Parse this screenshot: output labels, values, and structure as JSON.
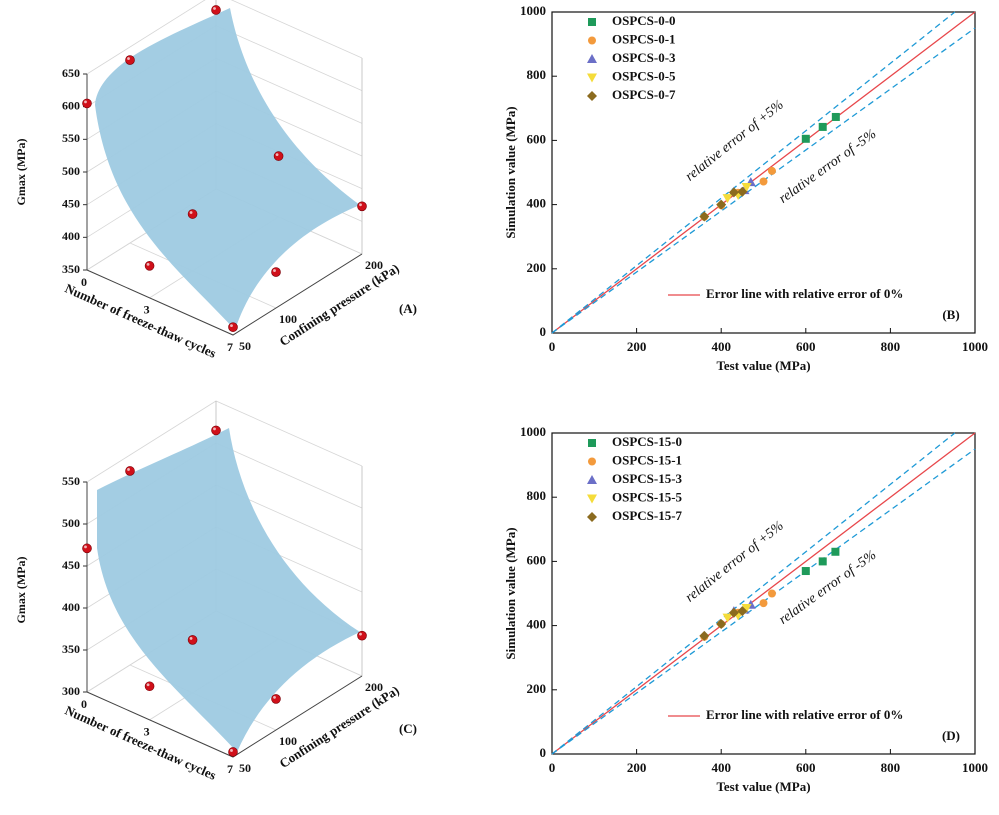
{
  "chart_data": [
    {
      "type": "surface3d",
      "panel_label": "(A)",
      "xlabel": "Number of freeze-thaw cycles",
      "ylabel": "Confining pressure (kPa)",
      "zlabel": "Gmax (MPa)",
      "xlim": [
        0,
        7
      ],
      "ylim": [
        50,
        200
      ],
      "zlim": [
        350,
        650
      ],
      "xticks": [
        0,
        3,
        7
      ],
      "yticks": [
        50,
        100,
        200
      ],
      "zticks": [
        350,
        400,
        450,
        500,
        550,
        600,
        650
      ],
      "surface_color": "#9ecae1",
      "point_color": "#d0101a",
      "x": [
        0,
        0,
        0,
        3,
        3,
        3,
        7,
        7,
        7
      ],
      "y": [
        50,
        100,
        200,
        50,
        100,
        200,
        50,
        100,
        200
      ],
      "z": [
        605,
        630,
        624,
        399,
        437,
        443,
        362,
        405,
        423
      ]
    },
    {
      "type": "scatter",
      "panel_label": "(B)",
      "xlabel": "Test value (MPa)",
      "ylabel": "Simulation value (MPa)",
      "xlim": [
        0,
        1000
      ],
      "ylim": [
        0,
        1000
      ],
      "xticks": [
        0,
        200,
        400,
        600,
        800,
        1000
      ],
      "yticks": [
        0,
        200,
        400,
        600,
        800,
        1000
      ],
      "reference_lines": [
        {
          "slope": 1,
          "color": "#e8474b",
          "dashed": false
        },
        {
          "slope": 1.05,
          "color": "#1f9ad6",
          "dashed": true
        },
        {
          "slope": 0.95,
          "color": "#1f9ad6",
          "dashed": true
        }
      ],
      "annotations": [
        "relative error of +5%",
        "relative error of -5%"
      ],
      "reference_label": "Error line with relative error of 0%",
      "series": [
        {
          "name": "OSPCS-0-0",
          "color": "#1e9a5a",
          "marker": "square",
          "x": [
            600,
            640,
            671
          ],
          "y": [
            605,
            642,
            673
          ]
        },
        {
          "name": "OSPCS-0-1",
          "color": "#f39a3c",
          "marker": "circle",
          "x": [
            360,
            400,
            440,
            500,
            520
          ],
          "y": [
            362,
            398,
            437,
            472,
            505
          ]
        },
        {
          "name": "OSPCS-0-3",
          "color": "#6b6fc7",
          "marker": "triangle",
          "x": [
            430,
            455,
            470
          ],
          "y": [
            440,
            445,
            470
          ]
        },
        {
          "name": "OSPCS-0-5",
          "color": "#f5dc3a",
          "marker": "triangle-down",
          "x": [
            415,
            440,
            460
          ],
          "y": [
            420,
            430,
            455
          ]
        },
        {
          "name": "OSPCS-0-7",
          "color": "#8b6b1f",
          "marker": "diamond",
          "x": [
            360,
            400,
            430,
            450
          ],
          "y": [
            363,
            400,
            438,
            440
          ]
        }
      ]
    },
    {
      "type": "surface3d",
      "panel_label": "(C)",
      "xlabel": "Number of freeze-thaw cycles",
      "ylabel": "Confining pressure (kPa)",
      "zlabel": "Gmax (MPa)",
      "xlim": [
        0,
        7
      ],
      "ylim": [
        50,
        200
      ],
      "zlim": [
        300,
        550
      ],
      "xticks": [
        0,
        3,
        7
      ],
      "yticks": [
        50,
        100,
        200
      ],
      "zticks": [
        300,
        350,
        400,
        450,
        500,
        550
      ],
      "surface_color": "#9ecae1",
      "point_color": "#d0101a",
      "x": [
        0,
        0,
        0,
        3,
        3,
        7,
        7,
        7
      ],
      "y": [
        50,
        100,
        200,
        50,
        100,
        50,
        100,
        200
      ],
      "z": [
        471,
        531,
        515,
        340,
        363,
        306,
        337,
        348
      ]
    },
    {
      "type": "scatter",
      "panel_label": "(D)",
      "xlabel": "Test value (MPa)",
      "ylabel": "Simulation value (MPa)",
      "xlim": [
        0,
        1000
      ],
      "ylim": [
        0,
        1000
      ],
      "xticks": [
        0,
        200,
        400,
        600,
        800,
        1000
      ],
      "yticks": [
        0,
        200,
        400,
        600,
        800,
        1000
      ],
      "reference_lines": [
        {
          "slope": 1,
          "color": "#e8474b",
          "dashed": false
        },
        {
          "slope": 1.05,
          "color": "#1f9ad6",
          "dashed": true
        },
        {
          "slope": 0.95,
          "color": "#1f9ad6",
          "dashed": true
        }
      ],
      "annotations": [
        "relative error of +5%",
        "relative error of -5%"
      ],
      "reference_label": "Error line with relative error of 0%",
      "series": [
        {
          "name": "OSPCS-15-0",
          "color": "#1e9a5a",
          "marker": "square",
          "x": [
            600,
            640,
            670
          ],
          "y": [
            570,
            600,
            630
          ]
        },
        {
          "name": "OSPCS-15-1",
          "color": "#f39a3c",
          "marker": "circle",
          "x": [
            360,
            400,
            440,
            500,
            520
          ],
          "y": [
            365,
            405,
            440,
            470,
            500
          ]
        },
        {
          "name": "OSPCS-15-3",
          "color": "#6b6fc7",
          "marker": "triangle",
          "x": [
            430,
            455,
            470
          ],
          "y": [
            445,
            450,
            465
          ]
        },
        {
          "name": "OSPCS-15-5",
          "color": "#f5dc3a",
          "marker": "triangle-down",
          "x": [
            415,
            440,
            460
          ],
          "y": [
            425,
            432,
            455
          ]
        },
        {
          "name": "OSPCS-15-7",
          "color": "#8b6b1f",
          "marker": "diamond",
          "x": [
            360,
            400,
            430,
            450
          ],
          "y": [
            368,
            405,
            440,
            445
          ]
        }
      ]
    }
  ]
}
